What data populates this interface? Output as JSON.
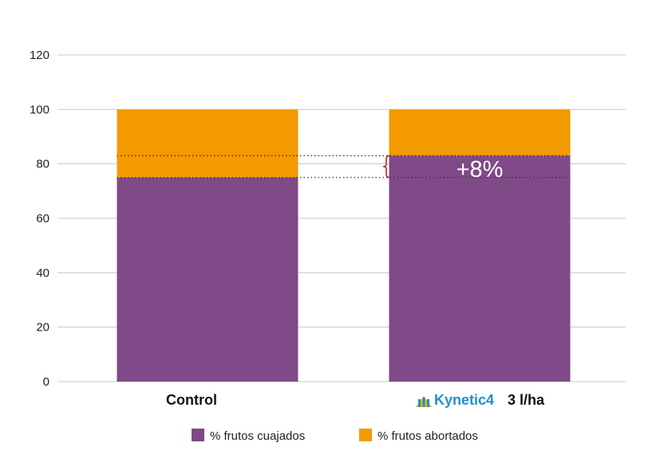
{
  "chart_data": {
    "type": "bar",
    "stacked": true,
    "categories": [
      "Control",
      "Kynetic4"
    ],
    "category_suffix": [
      "",
      "3 l/ha"
    ],
    "brand_mark": "Kynetic4",
    "series": [
      {
        "name": "% frutos cuajados",
        "values": [
          75,
          83
        ],
        "color": "#7f4a87"
      },
      {
        "name": "% frutos abortados",
        "values": [
          25,
          17
        ],
        "color": "#f39a00"
      }
    ],
    "ylim": [
      0,
      120
    ],
    "yticks": [
      0,
      20,
      40,
      60,
      80,
      100,
      120
    ],
    "grid": true,
    "legend_position": "bottom",
    "annotation": {
      "text": "+8%",
      "from": 75,
      "to": 83,
      "bracket_color": "#c0282e"
    }
  }
}
